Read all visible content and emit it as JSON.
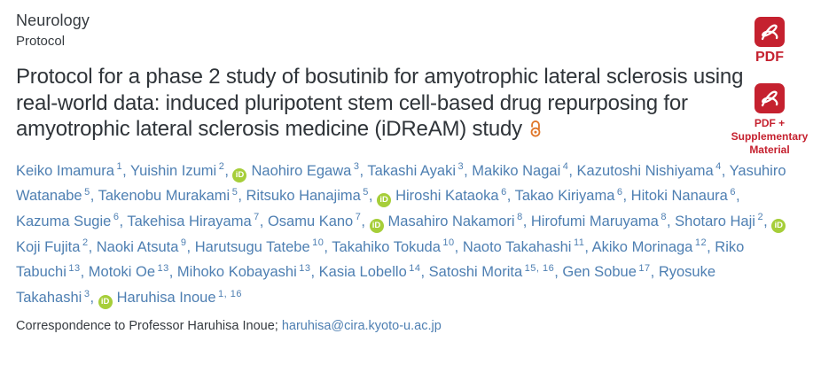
{
  "header": {
    "journal": "Neurology",
    "article_type": "Protocol"
  },
  "title": {
    "text": "Protocol for a phase 2 study of bosutinib for amyotrophic lateral sclerosis using real-world data: induced pluripotent stem cell-based drug repurposing for amyotrophic lateral sclerosis medicine (iDReAM) study"
  },
  "authors": [
    {
      "name": "Keiko Imamura",
      "sup": "1",
      "orcid": false
    },
    {
      "name": "Yuishin Izumi",
      "sup": "2",
      "orcid": false
    },
    {
      "name": "Naohiro Egawa",
      "sup": "3",
      "orcid": true
    },
    {
      "name": "Takashi Ayaki",
      "sup": "3",
      "orcid": false
    },
    {
      "name": "Makiko Nagai",
      "sup": "4",
      "orcid": false
    },
    {
      "name": "Kazutoshi Nishiyama",
      "sup": "4",
      "orcid": false
    },
    {
      "name": "Yasuhiro Watanabe",
      "sup": "5",
      "orcid": false
    },
    {
      "name": "Takenobu Murakami",
      "sup": "5",
      "orcid": false
    },
    {
      "name": "Ritsuko Hanajima",
      "sup": "5",
      "orcid": false
    },
    {
      "name": "Hiroshi Kataoka",
      "sup": "6",
      "orcid": true
    },
    {
      "name": "Takao Kiriyama",
      "sup": "6",
      "orcid": false
    },
    {
      "name": "Hitoki Nanaura",
      "sup": "6",
      "orcid": false
    },
    {
      "name": "Kazuma Sugie",
      "sup": "6",
      "orcid": false
    },
    {
      "name": "Takehisa Hirayama",
      "sup": "7",
      "orcid": false
    },
    {
      "name": "Osamu Kano",
      "sup": "7",
      "orcid": false
    },
    {
      "name": "Masahiro Nakamori",
      "sup": "8",
      "orcid": true
    },
    {
      "name": "Hirofumi Maruyama",
      "sup": "8",
      "orcid": false
    },
    {
      "name": "Shotaro Haji",
      "sup": "2",
      "orcid": false
    },
    {
      "name": "Koji Fujita",
      "sup": "2",
      "orcid": true
    },
    {
      "name": "Naoki Atsuta",
      "sup": "9",
      "orcid": false
    },
    {
      "name": "Harutsugu Tatebe",
      "sup": "10",
      "orcid": false
    },
    {
      "name": "Takahiko Tokuda",
      "sup": "10",
      "orcid": false
    },
    {
      "name": "Naoto Takahashi",
      "sup": "11",
      "orcid": false
    },
    {
      "name": "Akiko Morinaga",
      "sup": "12",
      "orcid": false
    },
    {
      "name": "Riko Tabuchi",
      "sup": "13",
      "orcid": false
    },
    {
      "name": "Motoki Oe",
      "sup": "13",
      "orcid": false
    },
    {
      "name": "Mihoko Kobayashi",
      "sup": "13",
      "orcid": false
    },
    {
      "name": "Kasia Lobello",
      "sup": "14",
      "orcid": false
    },
    {
      "name": "Satoshi Morita",
      "sup": "15, 16",
      "orcid": false
    },
    {
      "name": "Gen Sobue",
      "sup": "17",
      "orcid": false
    },
    {
      "name": "Ryosuke Takahashi",
      "sup": "3",
      "orcid": false
    },
    {
      "name": "Haruhisa Inoue",
      "sup": "1, 16",
      "orcid": true
    }
  ],
  "correspondence": {
    "label": "Correspondence to Professor Haruhisa Inoue;",
    "email": "haruhisa@cira.kyoto-u.ac.jp"
  },
  "downloads": {
    "pdf_label": "PDF",
    "pdf_supplementary_label": "PDF + Supplementary Material"
  },
  "icons": {
    "orcid": "orcid-id-icon",
    "open_access": "open-access-lock-icon",
    "pdf": "adobe-pdf-icon"
  },
  "colors": {
    "link_blue": "#4e7fb2",
    "text_dark": "#363b40",
    "orcid_green": "#a6ce39",
    "open_access_orange": "#e0772b",
    "pdf_red": "#c5212f"
  }
}
